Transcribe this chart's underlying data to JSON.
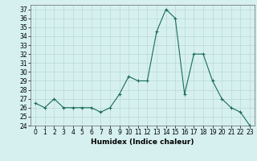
{
  "title": "",
  "xlabel": "Humidex (Indice chaleur)",
  "x": [
    0,
    1,
    2,
    3,
    4,
    5,
    6,
    7,
    8,
    9,
    10,
    11,
    12,
    13,
    14,
    15,
    16,
    17,
    18,
    19,
    20,
    21,
    22,
    23
  ],
  "y": [
    26.5,
    26.0,
    27.0,
    26.0,
    26.0,
    26.0,
    26.0,
    25.5,
    26.0,
    27.5,
    29.5,
    29.0,
    29.0,
    34.5,
    37.0,
    36.0,
    27.5,
    32.0,
    32.0,
    29.0,
    27.0,
    26.0,
    25.5,
    24.0
  ],
  "xlim": [
    -0.5,
    23.5
  ],
  "ylim": [
    24,
    37.5
  ],
  "yticks": [
    24,
    25,
    26,
    27,
    28,
    29,
    30,
    31,
    32,
    33,
    34,
    35,
    36,
    37
  ],
  "xticks": [
    0,
    1,
    2,
    3,
    4,
    5,
    6,
    7,
    8,
    9,
    10,
    11,
    12,
    13,
    14,
    15,
    16,
    17,
    18,
    19,
    20,
    21,
    22,
    23
  ],
  "line_color": "#1a6b5a",
  "marker": "+",
  "bg_color": "#d6f0f0",
  "grid_color": "#b8d8d8",
  "tick_label_size": 5.5,
  "xlabel_size": 6.5
}
